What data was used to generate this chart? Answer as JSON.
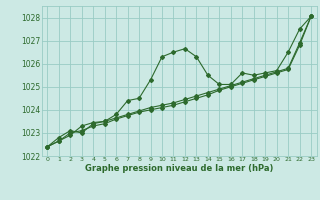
{
  "title": "Graphe pression niveau de la mer (hPa)",
  "xlim": [
    -0.5,
    23.5
  ],
  "ylim": [
    1022,
    1028.5
  ],
  "yticks": [
    1022,
    1023,
    1024,
    1025,
    1026,
    1027,
    1028
  ],
  "xticks": [
    0,
    1,
    2,
    3,
    4,
    5,
    6,
    7,
    8,
    9,
    10,
    11,
    12,
    13,
    14,
    15,
    16,
    17,
    18,
    19,
    20,
    21,
    22,
    23
  ],
  "bg_color": "#cce9e4",
  "grid_color": "#99ccc4",
  "line_color": "#2d6a2d",
  "line1_x": [
    0,
    1,
    2,
    3,
    4,
    5,
    6,
    7,
    8,
    9,
    10,
    11,
    12,
    13,
    14,
    15,
    16,
    17,
    18,
    19,
    20,
    21,
    22,
    23
  ],
  "line1_y": [
    1022.4,
    1022.8,
    1023.1,
    1023.0,
    1023.4,
    1023.5,
    1023.8,
    1024.4,
    1024.5,
    1025.3,
    1026.3,
    1026.5,
    1026.65,
    1026.3,
    1025.5,
    1025.1,
    1025.1,
    1025.6,
    1025.5,
    1025.6,
    1025.7,
    1026.5,
    1027.5,
    1028.05
  ],
  "line2_x": [
    0,
    1,
    2,
    3,
    4,
    5,
    6,
    7,
    8,
    9,
    10,
    11,
    12,
    13,
    14,
    15,
    16,
    17,
    18,
    19,
    20,
    21,
    22,
    23
  ],
  "line2_y": [
    1022.4,
    1022.65,
    1023.0,
    1023.1,
    1023.3,
    1023.4,
    1023.6,
    1023.75,
    1023.9,
    1024.0,
    1024.1,
    1024.2,
    1024.35,
    1024.5,
    1024.65,
    1024.85,
    1025.0,
    1025.15,
    1025.3,
    1025.45,
    1025.6,
    1025.75,
    1026.8,
    1028.05
  ],
  "line3_x": [
    0,
    1,
    2,
    3,
    4,
    5,
    6,
    7,
    8,
    9,
    10,
    11,
    12,
    13,
    14,
    15,
    16,
    17,
    18,
    19,
    20,
    21,
    22,
    23
  ],
  "line3_y": [
    1022.4,
    1022.65,
    1022.9,
    1023.3,
    1023.45,
    1023.5,
    1023.65,
    1023.8,
    1023.95,
    1024.1,
    1024.2,
    1024.3,
    1024.45,
    1024.6,
    1024.75,
    1024.9,
    1025.05,
    1025.2,
    1025.35,
    1025.5,
    1025.65,
    1025.8,
    1026.9,
    1028.05
  ]
}
